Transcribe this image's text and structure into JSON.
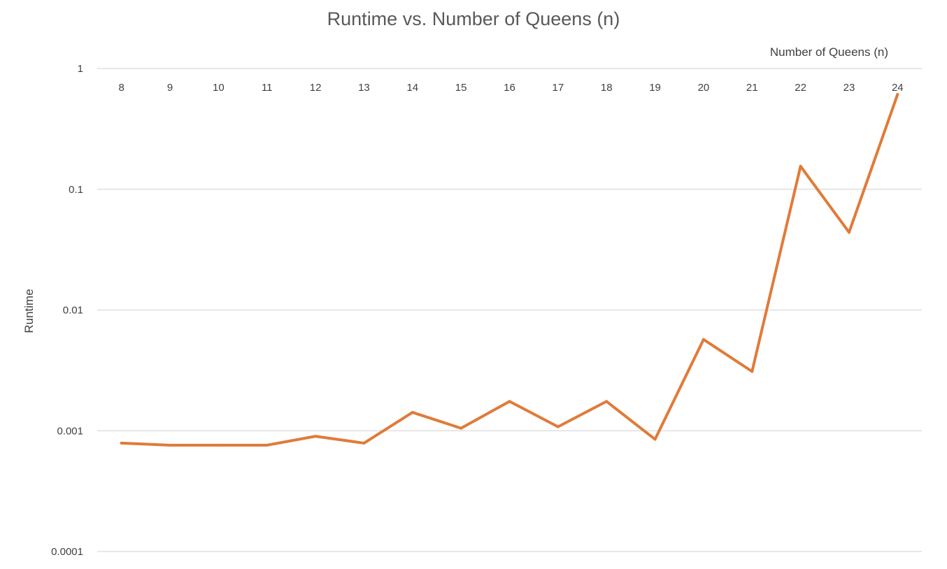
{
  "chart_data": {
    "type": "line",
    "title": "Runtime vs. Number of Queens (n)",
    "xlabel": "Number of Queens (n)",
    "ylabel": "Runtime",
    "y_scale": "log",
    "ylim": [
      0.0001,
      1
    ],
    "y_ticks": [
      "1",
      "0.1",
      "0.01",
      "0.001",
      "0.0001"
    ],
    "x_axis_position": "top",
    "grid": true,
    "legend": "none",
    "categories": [
      "8",
      "9",
      "10",
      "11",
      "12",
      "13",
      "14",
      "15",
      "16",
      "17",
      "18",
      "19",
      "20",
      "21",
      "22",
      "23",
      "24"
    ],
    "series": [
      {
        "color": "#E07B39",
        "values": [
          0.00079,
          0.00076,
          0.00076,
          0.00076,
          0.0009,
          0.00079,
          0.00142,
          0.00105,
          0.00175,
          0.00108,
          0.00175,
          0.00085,
          0.0057,
          0.0031,
          0.155,
          0.044,
          0.61
        ]
      }
    ]
  }
}
